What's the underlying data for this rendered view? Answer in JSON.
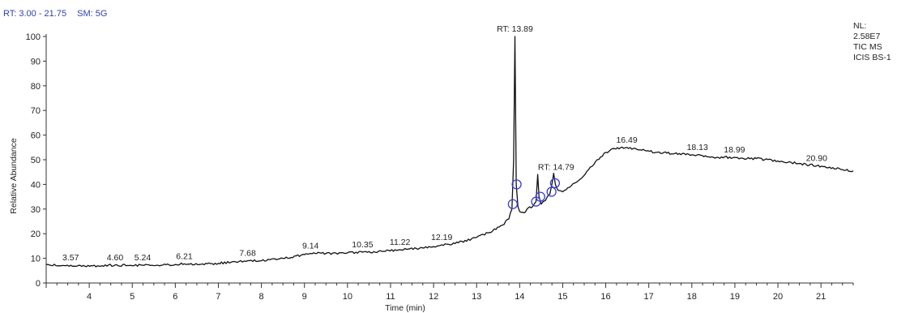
{
  "header": {
    "rt_range": "RT: 3.00 - 21.75",
    "smoothing": "SM: 5G"
  },
  "info_box": {
    "lines": [
      "NL:",
      "2.58E7",
      "TIC  MS",
      "ICIS BS-1"
    ]
  },
  "chart_data": {
    "type": "line",
    "title": "",
    "xlabel": "Time (min)",
    "ylabel": "Relative Abundance",
    "xlim": [
      3.0,
      21.75
    ],
    "ylim": [
      0,
      100
    ],
    "x_ticks": [
      4,
      5,
      6,
      7,
      8,
      9,
      10,
      11,
      12,
      13,
      14,
      15,
      16,
      17,
      18,
      19,
      20,
      21
    ],
    "y_ticks": [
      0,
      10,
      20,
      30,
      40,
      50,
      60,
      70,
      80,
      90,
      100
    ],
    "grid": false,
    "line_color": "#111111",
    "marker_color": "#3b3bd6",
    "series": [
      {
        "x": [
          3.0,
          3.3,
          3.57,
          3.9,
          4.3,
          4.6,
          5.0,
          5.24,
          5.6,
          6.0,
          6.21,
          6.6,
          7.0,
          7.4,
          7.68,
          8.0,
          8.5,
          9.0,
          9.14,
          9.5,
          10.0,
          10.35,
          10.8,
          11.22,
          11.6,
          12.0,
          12.19,
          12.5,
          13.0,
          13.3,
          13.6,
          13.75,
          13.82,
          13.86,
          13.89,
          13.92,
          13.96,
          14.0,
          14.1,
          14.2,
          14.3,
          14.38,
          14.42,
          14.45,
          14.5,
          14.6,
          14.7,
          14.76,
          14.79,
          14.83,
          14.9,
          15.0,
          15.2,
          15.4,
          15.6,
          15.8,
          16.0,
          16.2,
          16.49,
          16.8,
          17.2,
          17.6,
          18.0,
          18.13,
          18.5,
          18.99,
          19.2,
          19.5,
          20.0,
          20.5,
          20.9,
          21.2,
          21.5,
          21.75
        ],
        "y": [
          7.5,
          7.0,
          7.2,
          6.8,
          7.0,
          7.3,
          7.0,
          7.2,
          7.2,
          7.5,
          7.8,
          7.6,
          8.0,
          8.6,
          9.0,
          9.0,
          10.0,
          11.5,
          12.0,
          12.0,
          12.2,
          12.5,
          12.8,
          13.5,
          14.0,
          14.8,
          15.5,
          16.0,
          18.5,
          20.5,
          23.5,
          26.0,
          30.0,
          50.0,
          100.0,
          40.0,
          31.0,
          29.0,
          28.5,
          30.5,
          31.0,
          33.0,
          44.0,
          35.0,
          32.0,
          33.5,
          36.0,
          41.0,
          44.5,
          40.0,
          37.5,
          37.0,
          39.5,
          42.0,
          46.0,
          50.0,
          53.0,
          54.5,
          55.0,
          54.0,
          53.0,
          52.5,
          52.0,
          52.0,
          51.0,
          51.0,
          50.5,
          50.5,
          49.5,
          48.5,
          47.5,
          47.0,
          46.0,
          45.5
        ]
      }
    ],
    "peak_labels": [
      {
        "text": "3.57",
        "x": 3.57,
        "y": 7.2
      },
      {
        "text": "4.60",
        "x": 4.6,
        "y": 7.3
      },
      {
        "text": "5.24",
        "x": 5.24,
        "y": 7.2
      },
      {
        "text": "6.21",
        "x": 6.21,
        "y": 7.8
      },
      {
        "text": "7.68",
        "x": 7.68,
        "y": 9.0
      },
      {
        "text": "9.14",
        "x": 9.14,
        "y": 12.0
      },
      {
        "text": "10.35",
        "x": 10.35,
        "y": 12.5
      },
      {
        "text": "11.22",
        "x": 11.22,
        "y": 13.5
      },
      {
        "text": "12.19",
        "x": 12.19,
        "y": 15.5
      },
      {
        "text": "RT: 13.89",
        "x": 13.89,
        "y": 100.0
      },
      {
        "text": "RT: 14.79",
        "x": 14.79,
        "y": 44.5
      },
      {
        "text": "16.49",
        "x": 16.49,
        "y": 55.0
      },
      {
        "text": "18.13",
        "x": 18.13,
        "y": 52.0
      },
      {
        "text": "18.99",
        "x": 18.99,
        "y": 51.0
      },
      {
        "text": "20.90",
        "x": 20.9,
        "y": 47.5
      }
    ],
    "markers": [
      {
        "x": 13.84,
        "y": 32.0
      },
      {
        "x": 13.93,
        "y": 40.0
      },
      {
        "x": 14.38,
        "y": 33.0
      },
      {
        "x": 14.48,
        "y": 35.0
      },
      {
        "x": 14.74,
        "y": 37.0
      },
      {
        "x": 14.82,
        "y": 40.5
      }
    ]
  }
}
